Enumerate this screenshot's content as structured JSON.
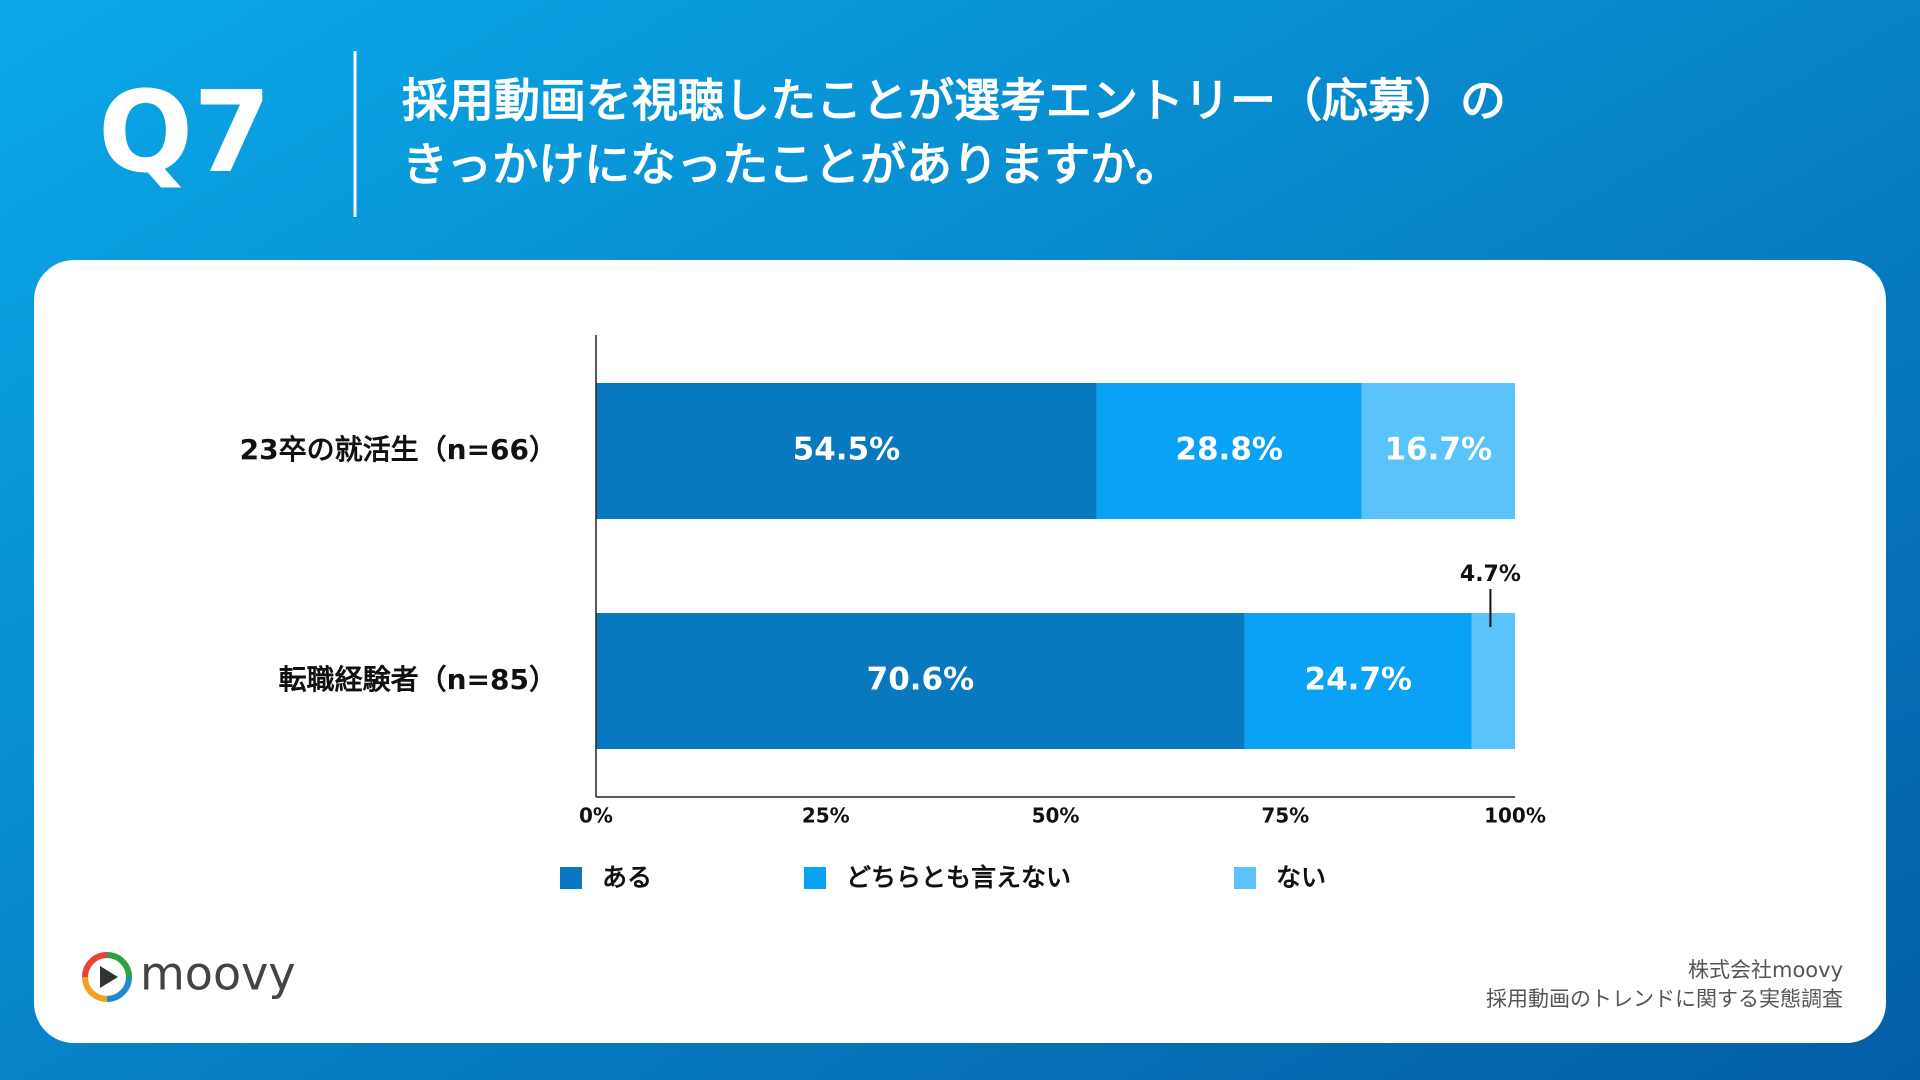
{
  "question": "Q7",
  "title_lines": [
    "採用動画を視聴したことが選考エントリー（応募）の",
    "きっかけになったことがありますか。"
  ],
  "chart_data": {
    "type": "stacked-barh",
    "categories": [
      "23卒の就活生（n=66）",
      "転職経験者（n=85）"
    ],
    "series": [
      {
        "name": "ある",
        "color": "#0878bf",
        "values": [
          54.5,
          70.6
        ],
        "value_labels": [
          "54.5%",
          "70.6%"
        ]
      },
      {
        "name": "どちらとも言えない",
        "color": "#0aa2f5",
        "values": [
          28.8,
          24.7
        ],
        "value_labels": [
          "28.8%",
          "24.7%"
        ]
      },
      {
        "name": "ない",
        "color": "#5bc3fb",
        "values": [
          16.7,
          4.7
        ],
        "value_labels": [
          "16.7%",
          "4.7%"
        ]
      }
    ],
    "xlim": [
      0,
      100
    ],
    "xticks": [
      {
        "value": 0,
        "label": "0%"
      },
      {
        "value": 25,
        "label": "25%"
      },
      {
        "value": 50,
        "label": "50%"
      },
      {
        "value": 75,
        "label": "75%"
      },
      {
        "value": 100,
        "label": "100%"
      }
    ],
    "legend": "bottom"
  },
  "logo": "moovy",
  "source": [
    "株式会社moovy",
    "採用動画のトレンドに関する実態調査"
  ]
}
